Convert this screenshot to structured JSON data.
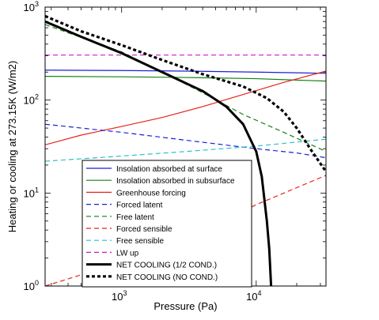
{
  "chart_data": {
    "type": "line",
    "title": "",
    "xlabel": "Pressure (Pa)",
    "ylabel": "Heating or cooling at 273.15K (W/m2)",
    "xscale": "log",
    "yscale": "log",
    "xlim": [
      270,
      33000
    ],
    "ylim": [
      1,
      1000
    ],
    "xticks": [
      {
        "base": "10",
        "exp": "3",
        "value": 1000
      },
      {
        "base": "10",
        "exp": "4",
        "value": 10000
      }
    ],
    "yticks": [
      {
        "base": "10",
        "exp": "0",
        "value": 1
      },
      {
        "base": "10",
        "exp": "1",
        "value": 10
      },
      {
        "base": "10",
        "exp": "2",
        "value": 100
      },
      {
        "base": "10",
        "exp": "3",
        "value": 1000
      }
    ],
    "legend_position": "lower-left",
    "series": [
      {
        "name": "Insolation absorbed at surface",
        "color": "#1f1fd6",
        "style": "solid",
        "width": 1.2,
        "x": [
          270,
          1000,
          3000,
          10000,
          33000
        ],
        "y": [
          210,
          208,
          205,
          200,
          194
        ]
      },
      {
        "name": "Insolation absorbed in subsurface",
        "color": "#138013",
        "style": "solid",
        "width": 1.2,
        "x": [
          270,
          1000,
          3000,
          10000,
          33000
        ],
        "y": [
          180,
          178,
          175,
          170,
          160
        ]
      },
      {
        "name": "Greenhouse forcing",
        "color": "#e8231c",
        "style": "solid",
        "width": 1.2,
        "x": [
          270,
          500,
          1000,
          2000,
          4000,
          8000,
          16000,
          33000
        ],
        "y": [
          33,
          42,
          52,
          65,
          85,
          115,
          155,
          205
        ]
      },
      {
        "name": "Forced latent",
        "color": "#1f1fd6",
        "style": "dashed",
        "width": 1.2,
        "x": [
          270,
          1000,
          3000,
          10000,
          20000,
          33000
        ],
        "y": [
          55,
          45,
          37,
          30,
          27,
          24
        ]
      },
      {
        "name": "Free latent",
        "color": "#138013",
        "style": "dashed",
        "width": 1.2,
        "x": [
          270,
          1000,
          2000,
          4000,
          8000,
          16000,
          33000
        ],
        "y": [
          650,
          330,
          200,
          120,
          70,
          45,
          28
        ]
      },
      {
        "name": "Forced sensible",
        "color": "#e8231c",
        "style": "dashed",
        "width": 1.2,
        "x": [
          270,
          1000,
          3000,
          10000,
          33000
        ],
        "y": [
          1,
          1.8,
          3.2,
          7.5,
          15.5
        ]
      },
      {
        "name": "Free sensible",
        "color": "#27c2cc",
        "style": "dashed",
        "width": 1.2,
        "x": [
          270,
          1000,
          3000,
          10000,
          33000
        ],
        "y": [
          22,
          25,
          28,
          32,
          38
        ]
      },
      {
        "name": "LW up",
        "color": "#c21fc2",
        "style": "dashed",
        "width": 1.2,
        "x": [
          270,
          33000
        ],
        "y": [
          305,
          305
        ]
      },
      {
        "name": "NET COOLING (1/2 COND.)",
        "color": "#000000",
        "style": "solid",
        "width": 3,
        "x": [
          270,
          500,
          1000,
          2000,
          4000,
          6000,
          8000,
          10000,
          11000,
          12000,
          12500,
          12900
        ],
        "y": [
          700,
          480,
          320,
          200,
          125,
          85,
          55,
          28,
          15,
          5,
          2.5,
          1
        ]
      },
      {
        "name": "NET COOLING (NO COND.)",
        "color": "#000000",
        "style": "dotted",
        "width": 3.2,
        "x": [
          270,
          500,
          1000,
          2000,
          4000,
          8000,
          12000,
          16000,
          20000,
          26000,
          33000
        ],
        "y": [
          800,
          550,
          390,
          270,
          190,
          140,
          105,
          75,
          50,
          28,
          17
        ]
      }
    ]
  }
}
